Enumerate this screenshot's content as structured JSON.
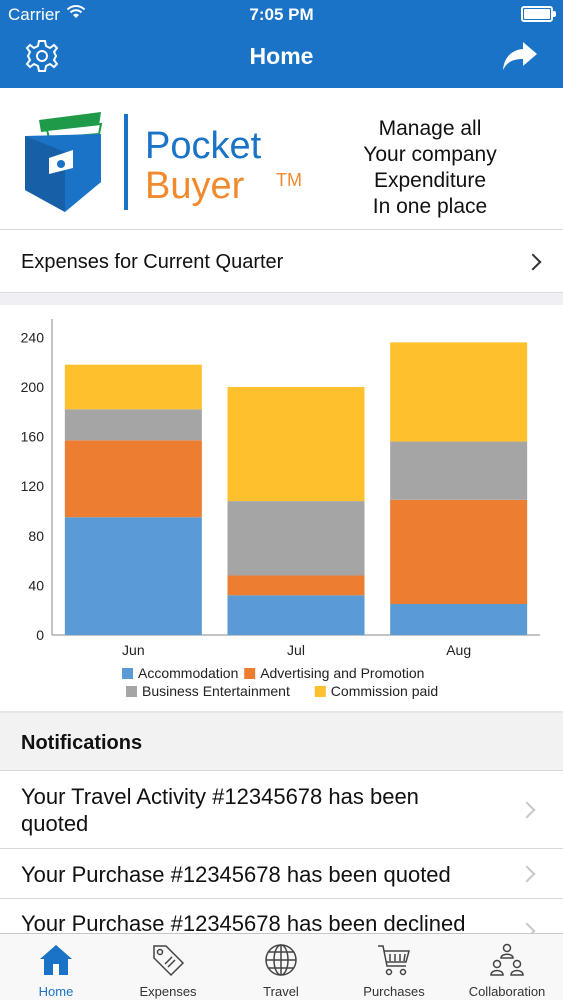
{
  "status_bar": {
    "carrier": "Carrier",
    "time": "7:05 PM"
  },
  "nav": {
    "title": "Home"
  },
  "banner": {
    "logo_line1": "Pocket",
    "logo_line2": "Buyer",
    "logo_tm": "TM",
    "tagline": [
      "Manage all",
      "Your company",
      "Expenditure",
      "In one place"
    ]
  },
  "expenses_row": {
    "label": "Expenses for Current Quarter"
  },
  "chart_data": {
    "type": "bar",
    "stacked": true,
    "categories": [
      "Jun",
      "Jul",
      "Aug"
    ],
    "series": [
      {
        "name": "Accommodation",
        "color": "#5b9bd5",
        "values": [
          95,
          32,
          25
        ]
      },
      {
        "name": "Advertising and Promotion",
        "color": "#ed7d31",
        "values": [
          62,
          16,
          84
        ]
      },
      {
        "name": "Business Entertainment",
        "color": "#a5a5a5",
        "values": [
          25,
          60,
          47
        ]
      },
      {
        "name": "Commission paid",
        "color": "#ffc02e",
        "values": [
          36,
          92,
          80
        ]
      }
    ],
    "ylim": [
      0,
      250
    ],
    "yticks": [
      0,
      40,
      80,
      120,
      160,
      200,
      240
    ],
    "legend": "bottom"
  },
  "notifications": {
    "title": "Notifications",
    "items": [
      "Your Travel Activity #12345678 has been quoted",
      "Your Purchase #12345678 has been quoted",
      "Your Purchase #12345678 has been declined"
    ]
  },
  "tabs": [
    {
      "label": "Home",
      "icon": "home-icon",
      "active": true
    },
    {
      "label": "Expenses",
      "icon": "price-tag-icon",
      "active": false
    },
    {
      "label": "Travel",
      "icon": "globe-icon",
      "active": false
    },
    {
      "label": "Purchases",
      "icon": "cart-icon",
      "active": false
    },
    {
      "label": "Collaboration",
      "icon": "people-icon",
      "active": false
    }
  ],
  "colors": {
    "brand_blue": "#1a73c6",
    "brand_orange": "#f08a2c"
  }
}
